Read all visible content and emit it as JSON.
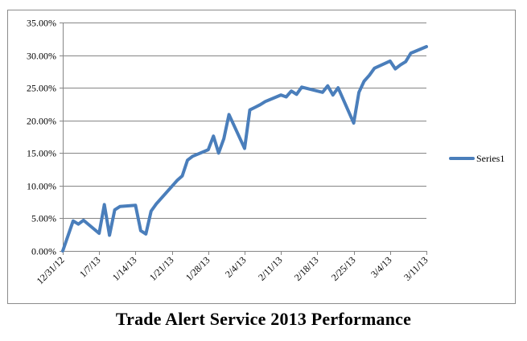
{
  "chart_data": {
    "type": "line",
    "title": "Trade Alert Service 2013 Performance",
    "xlabel": "",
    "ylabel": "",
    "y_format": "percent_2dp",
    "ylim": [
      0,
      0.35
    ],
    "y_ticks": [
      0,
      0.05,
      0.1,
      0.15,
      0.2,
      0.25,
      0.3,
      0.35
    ],
    "y_tick_labels": [
      "0.00%",
      "5.00%",
      "10.00%",
      "15.00%",
      "20.00%",
      "25.00%",
      "30.00%",
      "35.00%"
    ],
    "x_tick_labels": [
      "12/31/12",
      "1/7/13",
      "1/14/13",
      "1/21/13",
      "1/28/13",
      "2/4/13",
      "2/11/13",
      "2/18/13",
      "2/25/13",
      "3/4/13",
      "3/11/13"
    ],
    "x_range_dates": [
      "12/31/12",
      "3/11/13"
    ],
    "grid": {
      "horizontal": true,
      "vertical": false
    },
    "legend_position": "right",
    "series_color": "#4a7ebb",
    "series": [
      {
        "name": "Series1",
        "x": [
          "12/31/12",
          "1/2/13",
          "1/3/13",
          "1/4/13",
          "1/7/13",
          "1/8/13",
          "1/9/13",
          "1/10/13",
          "1/11/13",
          "1/14/13",
          "1/15/13",
          "1/16/13",
          "1/17/13",
          "1/18/13",
          "1/22/13",
          "1/23/13",
          "1/24/13",
          "1/25/13",
          "1/28/13",
          "1/29/13",
          "1/30/13",
          "1/31/13",
          "2/1/13",
          "2/4/13",
          "2/5/13",
          "2/6/13",
          "2/7/13",
          "2/8/13",
          "2/11/13",
          "2/12/13",
          "2/13/13",
          "2/14/13",
          "2/15/13",
          "2/19/13",
          "2/20/13",
          "2/21/13",
          "2/22/13",
          "2/25/13",
          "2/26/13",
          "2/27/13",
          "2/28/13",
          "3/1/13",
          "3/4/13",
          "3/5/13",
          "3/6/13",
          "3/7/13",
          "3/8/13",
          "3/11/13"
        ],
        "values": [
          0.0,
          0.046,
          0.041,
          0.047,
          0.027,
          0.071,
          0.024,
          0.063,
          0.068,
          0.07,
          0.031,
          0.026,
          0.061,
          0.072,
          0.108,
          0.115,
          0.139,
          0.145,
          0.155,
          0.176,
          0.15,
          0.172,
          0.209,
          0.157,
          0.216,
          0.22,
          0.224,
          0.229,
          0.239,
          0.236,
          0.245,
          0.24,
          0.251,
          0.243,
          0.253,
          0.239,
          0.25,
          0.196,
          0.243,
          0.26,
          0.269,
          0.28,
          0.291,
          0.279,
          0.285,
          0.29,
          0.303,
          0.313
        ]
      }
    ]
  }
}
